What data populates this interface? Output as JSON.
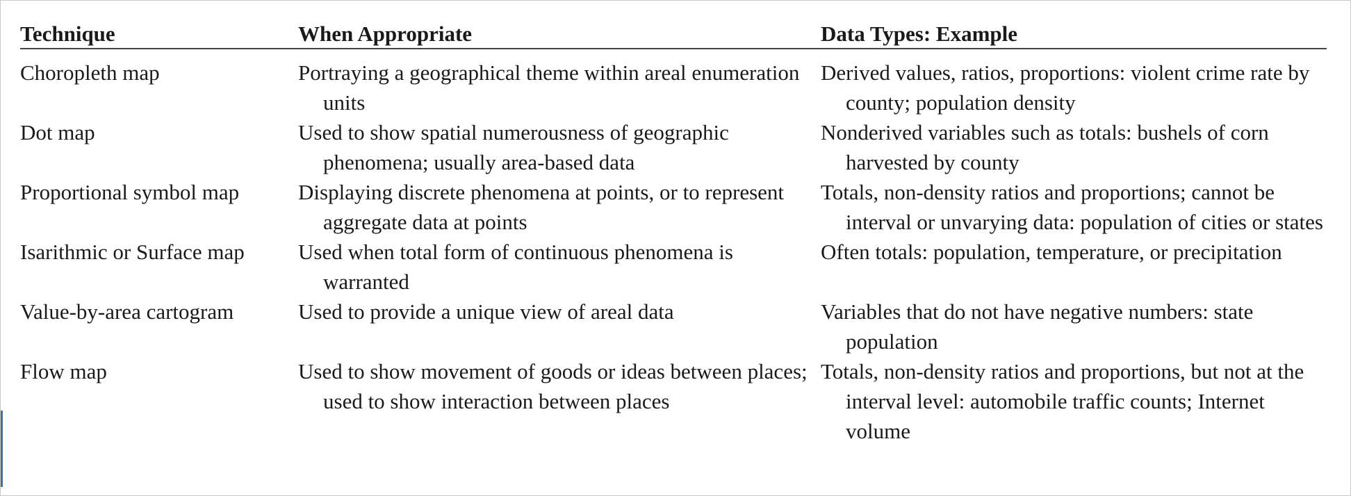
{
  "table": {
    "headers": [
      "Technique",
      "When Appropriate",
      "Data Types: Example"
    ],
    "rows": [
      {
        "technique": "Choropleth map",
        "when": "Portraying a geographical theme within areal enumeration units",
        "data_types": "Derived values, ratios, proportions: violent crime rate by county; population density"
      },
      {
        "technique": "Dot map",
        "when": "Used to show spatial numerousness of geographic phenomena; usually area-based data",
        "data_types": "Nonderived variables such as totals: bushels of corn harvested by county"
      },
      {
        "technique": "Proportional symbol map",
        "when": "Displaying discrete phenomena at points, or to represent aggregate data at points",
        "data_types": "Totals, non-density ratios and proportions; cannot be interval or unvarying data: population of cities or states"
      },
      {
        "technique": "Isarithmic or Surface map",
        "when": "Used when total form of continuous phenomena is warranted",
        "data_types": "Often totals: population, temperature, or precipitation"
      },
      {
        "technique": "Value-by-area cartogram",
        "when": "Used to provide a unique view of areal data",
        "data_types": "Variables that do not have negative numbers: state population"
      },
      {
        "technique": "Flow map",
        "when": "Used to show movement of goods or ideas between places; used to show interaction between places",
        "data_types": "Totals, non-density ratios and proportions, but not at the interval level: automobile traffic counts; Internet volume"
      }
    ]
  }
}
